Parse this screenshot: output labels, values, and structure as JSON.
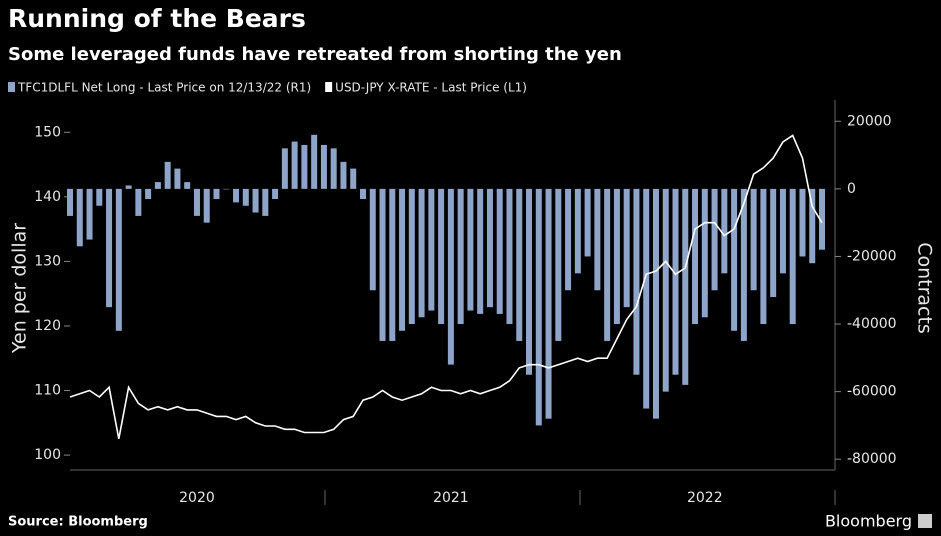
{
  "chart_data": {
    "type": "bar-line",
    "title": "Running of the Bears",
    "subtitle": "Some leveraged funds have retreated from shorting the yen",
    "ylabel": "Yen per dollar",
    "y2label": "Contracts",
    "source": "Source: Bloomberg",
    "brand": "Bloomberg",
    "categories": [
      null,
      null,
      null,
      null,
      null,
      null,
      null,
      null,
      null,
      null,
      null,
      null,
      null,
      "2020",
      null,
      null,
      null,
      null,
      null,
      null,
      null,
      null,
      null,
      null,
      null,
      null,
      null,
      null,
      null,
      null,
      null,
      null,
      null,
      null,
      null,
      null,
      null,
      null,
      null,
      "2021",
      null,
      null,
      null,
      null,
      null,
      null,
      null,
      null,
      null,
      null,
      null,
      null,
      null,
      null,
      null,
      null,
      null,
      null,
      null,
      null,
      null,
      null,
      null,
      null,
      null,
      "2022",
      null,
      null,
      null,
      null,
      null,
      null,
      null,
      null,
      null,
      null,
      null,
      null
    ],
    "ylim": [
      98,
      155
    ],
    "yticks": [
      100,
      110,
      120,
      130,
      140,
      150
    ],
    "y2lim": [
      -82600,
      26300
    ],
    "y2ticks": [
      20000,
      0,
      -20000,
      -40000,
      -60000,
      -80000
    ],
    "series": [
      {
        "name": "TFC1DLFL Net Long - Last Price on 12/13/22 (R1)",
        "type": "bar",
        "axis": "y2",
        "color": "#8ea5c9",
        "values": [
          -8000,
          -17000,
          -15000,
          -5000,
          -35000,
          -42000,
          1000,
          -8000,
          -3000,
          2000,
          8000,
          6000,
          2000,
          -8000,
          -10000,
          -3000,
          0,
          -4000,
          -5000,
          -7000,
          -8000,
          -3000,
          12000,
          14000,
          13000,
          16000,
          13000,
          12000,
          8000,
          6000,
          -3000,
          -30000,
          -45000,
          -45000,
          -42000,
          -40000,
          -38000,
          -36000,
          -40000,
          -52000,
          -40000,
          -36000,
          -37000,
          -35000,
          -37000,
          -40000,
          -45000,
          -55000,
          -70000,
          -68000,
          -45000,
          -30000,
          -25000,
          -20000,
          -30000,
          -45000,
          -40000,
          -35000,
          -55000,
          -65000,
          -68000,
          -60000,
          -55000,
          -58000,
          -40000,
          -38000,
          -30000,
          -25000,
          -42000,
          -45000,
          -30000,
          -40000,
          -32000,
          -25000,
          -40000,
          -20000,
          -22000,
          -18000
        ]
      },
      {
        "name": "USD-JPY X-RATE - Last Price (L1)",
        "type": "line",
        "axis": "y",
        "color": "#ffffff",
        "values": [
          109,
          109.5,
          110,
          109,
          110.5,
          102.5,
          110.5,
          108,
          107,
          107.5,
          107,
          107.5,
          107,
          107,
          106.5,
          106,
          106,
          105.5,
          106,
          105,
          104.5,
          104.5,
          104,
          104,
          103.5,
          103.5,
          103.5,
          104,
          105.5,
          106,
          108.5,
          109,
          110,
          109,
          108.5,
          109,
          109.5,
          110.5,
          110,
          110,
          109.5,
          110,
          109.5,
          110,
          110.5,
          111.5,
          113.5,
          114,
          114,
          113.5,
          114,
          114.5,
          115,
          114.5,
          115,
          115,
          118,
          121,
          123,
          128,
          128.5,
          130,
          128,
          129,
          135,
          136,
          136,
          134,
          135,
          139,
          143.5,
          144.5,
          146,
          148.5,
          149.5,
          146,
          138.5,
          136
        ]
      }
    ]
  }
}
